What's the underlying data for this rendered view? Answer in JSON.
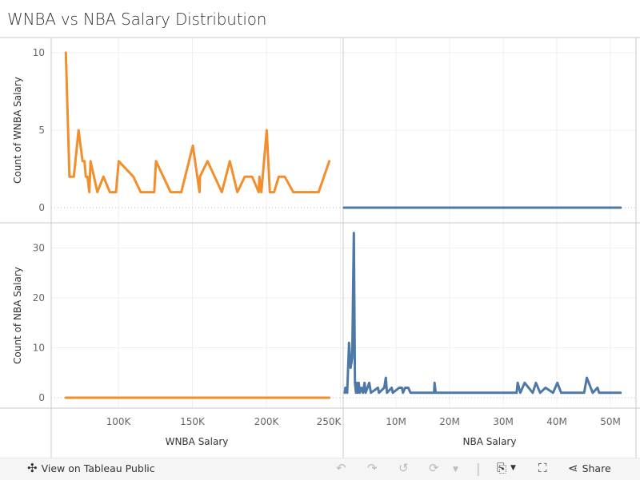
{
  "title": "WNBA vs NBA Salary Distribution",
  "colors": {
    "wnba": "#f28e2b",
    "nba": "#4e79a7",
    "grid": "#efefef",
    "axis": "#c8c8c8"
  },
  "chart_data": [
    {
      "type": "line",
      "panel": "top-left",
      "xlabel": "",
      "ylabel": "Count of WNBA Salary",
      "xlim": [
        0,
        250000
      ],
      "ylim": [
        0,
        10
      ],
      "yticks": [
        0,
        5,
        10
      ],
      "series": [
        {
          "color": "#f28e2b",
          "x": [
            64500,
            66900,
            69900,
            73100,
            75800,
            77100,
            78000,
            79100,
            80400,
            81200,
            85800,
            89900,
            94200,
            98400,
            100200,
            110100,
            115100,
            124200,
            125400,
            135300,
            142500,
            150300,
            154800,
            155100,
            160200,
            169900,
            175300,
            180400,
            185400,
            190400,
            194800,
            195300,
            196600,
            200200,
            202300,
            205200,
            208300,
            212400,
            218200,
            235300,
            242500
          ],
          "y": [
            10,
            2,
            2,
            5,
            3,
            3,
            2,
            2,
            1,
            3,
            1,
            2,
            1,
            1,
            3,
            2,
            1,
            1,
            3,
            1,
            1,
            4,
            1,
            2,
            3,
            1,
            3,
            1,
            2,
            2,
            1,
            2,
            1,
            5,
            1,
            1,
            2,
            2,
            1,
            1,
            3
          ]
        }
      ]
    },
    {
      "type": "line",
      "panel": "top-right",
      "xlabel": "",
      "ylabel": "",
      "xlim": [
        0,
        52000000
      ],
      "ylim": [
        0,
        10
      ],
      "series": [
        {
          "color": "#4e79a7",
          "x": [
            300000,
            51900000
          ],
          "y": [
            0,
            0
          ]
        }
      ]
    },
    {
      "type": "line",
      "panel": "bottom-left",
      "xlabel": "WNBA Salary",
      "ylabel": "Count of NBA Salary",
      "xlim": [
        0,
        250000
      ],
      "ylim": [
        0,
        35
      ],
      "xticks": [
        "100K",
        "150K",
        "200K",
        "250K"
      ],
      "xtick_values": [
        100000,
        150000,
        200000,
        250000
      ],
      "yticks": [
        0,
        10,
        20,
        30
      ],
      "series": [
        {
          "color": "#f28e2b",
          "x": [
            64500,
            242500
          ],
          "y": [
            0,
            0
          ]
        }
      ]
    },
    {
      "type": "line",
      "panel": "bottom-right",
      "xlabel": "NBA Salary",
      "ylabel": "",
      "xlim": [
        0,
        52000000
      ],
      "ylim": [
        0,
        35
      ],
      "xticks": [
        "10M",
        "20M",
        "30M",
        "40M",
        "50M"
      ],
      "xtick_values": [
        10000000,
        20000000,
        30000000,
        40000000,
        50000000
      ],
      "series": [
        {
          "color": "#4e79a7",
          "x": [
            450000,
            550000,
            900000,
            1240000,
            1540000,
            1840000,
            2140000,
            2340000,
            2540000,
            2640000,
            2840000,
            3040000,
            3240000,
            3530000,
            3830000,
            4130000,
            4330000,
            5020000,
            5320000,
            6620000,
            6820000,
            7810000,
            8110000,
            8310000,
            9200000,
            9400000,
            10600000,
            11100000,
            11300000,
            11700000,
            12300000,
            12700000,
            17100000,
            17200000,
            17400000,
            32500000,
            32700000,
            33200000,
            34000000,
            35500000,
            36100000,
            36900000,
            37900000,
            39300000,
            40100000,
            40800000,
            45100000,
            45600000,
            46700000,
            47600000,
            47900000,
            51900000
          ],
          "y": [
            1,
            2,
            1,
            11,
            6,
            8,
            33,
            3,
            1,
            3,
            1,
            3,
            1,
            2,
            1,
            3,
            1,
            3,
            1,
            2,
            1,
            2,
            4,
            1,
            2,
            1,
            2,
            2,
            1,
            2,
            2,
            1,
            1,
            3,
            1,
            1,
            3,
            1,
            3,
            1,
            3,
            1,
            2,
            1,
            3,
            1,
            1,
            4,
            1,
            2,
            1,
            1
          ]
        }
      ]
    }
  ],
  "toolbar": {
    "view_label": "View on Tableau Public",
    "share_label": "Share",
    "icons": [
      "tableau-logo-icon",
      "undo-icon",
      "redo-icon",
      "revert-icon",
      "refresh-icon",
      "download-icon",
      "fullscreen-icon",
      "share-icon"
    ]
  }
}
